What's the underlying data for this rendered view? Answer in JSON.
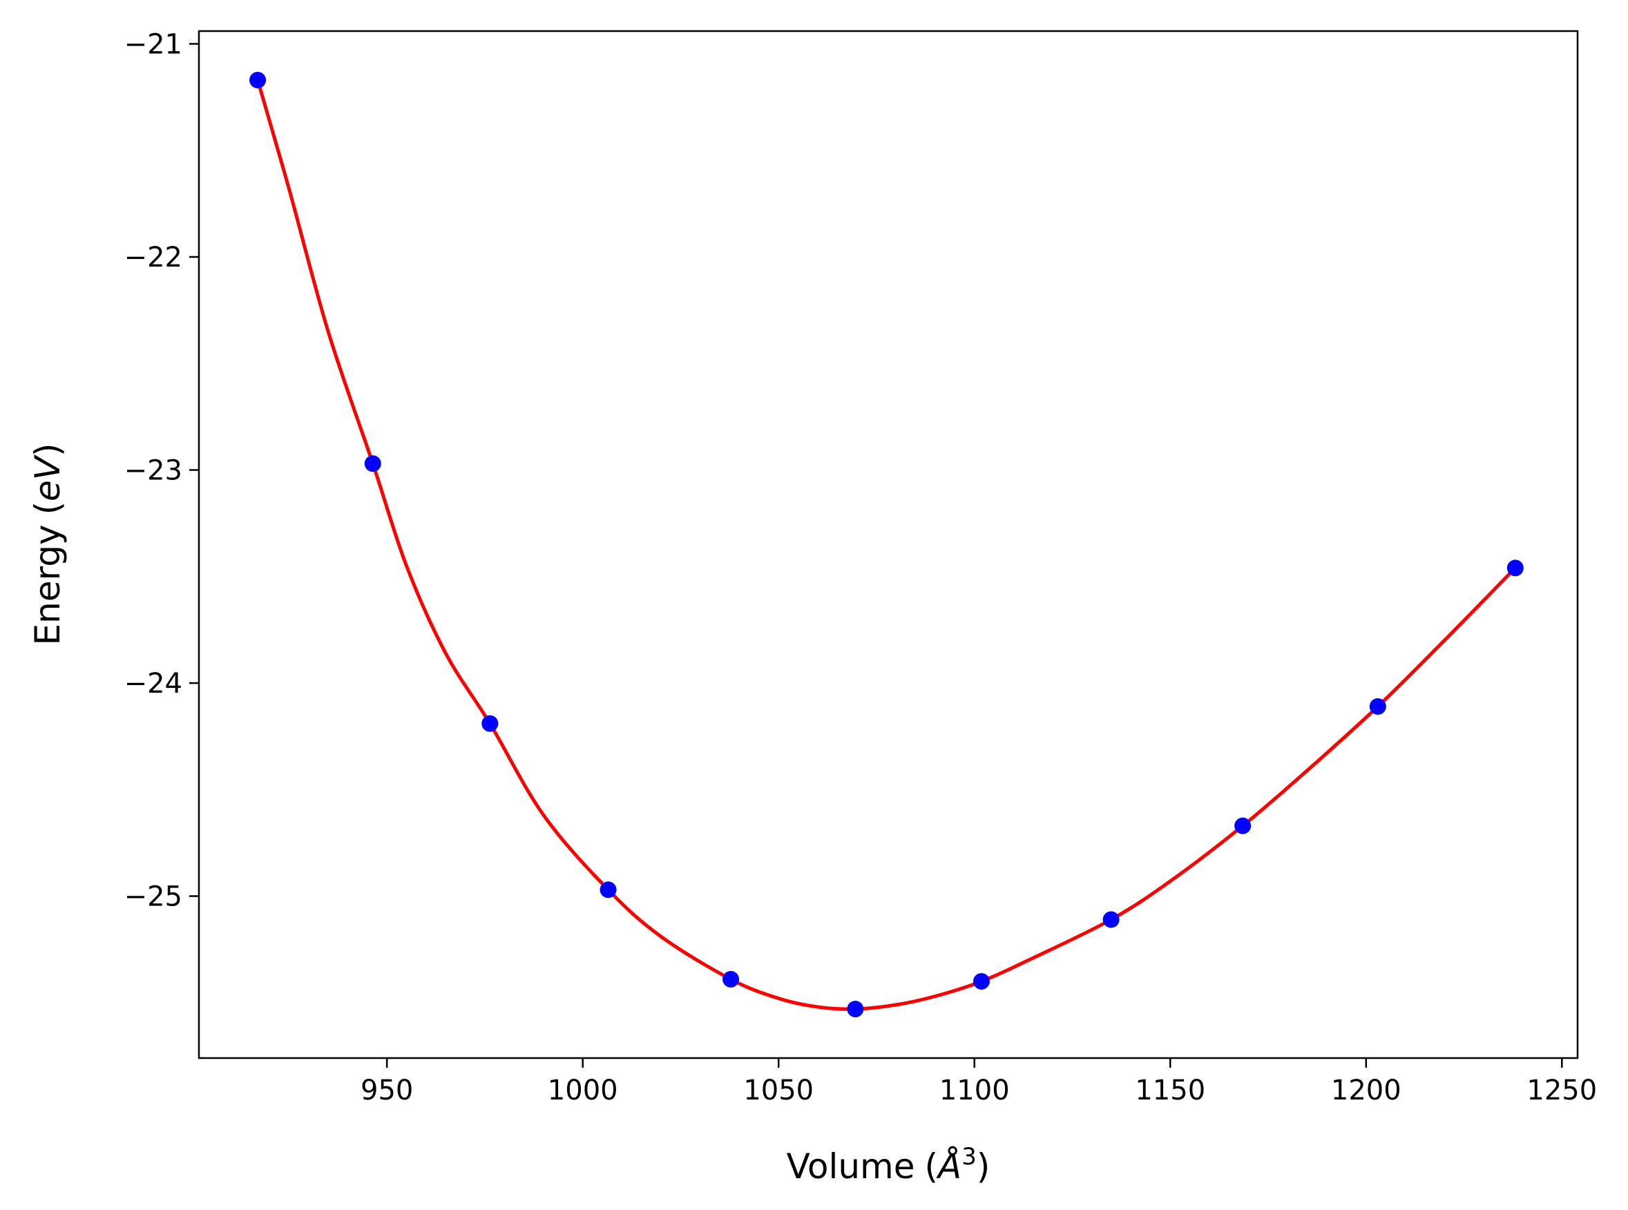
{
  "chart_data": {
    "type": "scatter",
    "title": "",
    "xlabel": "Volume",
    "xlabel_unit_prefix": "(",
    "xlabel_unit_symbol": "Å",
    "xlabel_unit_exponent": "3",
    "xlabel_unit_suffix": ")",
    "ylabel": "Energy",
    "ylabel_unit_prefix": "(",
    "ylabel_unit_symbol": "eV",
    "ylabel_unit_suffix": ")",
    "xlim": [
      902,
      1254
    ],
    "ylim": [
      -25.76,
      -20.94
    ],
    "x_ticks": [
      950,
      1000,
      1050,
      1100,
      1150,
      1200,
      1250
    ],
    "x_tick_labels": [
      "950",
      "1000",
      "1050",
      "1100",
      "1150",
      "1200",
      "1250"
    ],
    "y_ticks": [
      -21,
      -22,
      -23,
      -24,
      -25
    ],
    "y_tick_labels": [
      "−21",
      "−22",
      "−23",
      "−24",
      "−25"
    ],
    "grid": false,
    "series": [
      {
        "kind": "points",
        "color": "#0000ff",
        "x": [
          917,
          946.4,
          976.3,
          1006.5,
          1037.8,
          1069.6,
          1101.8,
          1134.9,
          1168.5,
          1203.0,
          1238.1
        ],
        "y": [
          -21.17,
          -22.97,
          -24.19,
          -24.97,
          -25.39,
          -25.53,
          -25.4,
          -25.11,
          -24.67,
          -24.11,
          -23.46
        ]
      },
      {
        "kind": "line",
        "color": "#ff0000",
        "x": [
          917,
          925,
          935,
          946.4,
          955,
          965,
          976.3,
          990,
          1006.5,
          1020,
          1037.8,
          1050,
          1060,
          1069.6,
          1080,
          1090,
          1101.8,
          1115,
          1134.9,
          1150,
          1168.5,
          1185,
          1203.0,
          1220,
          1238.1
        ],
        "y": [
          -21.17,
          -21.68,
          -22.35,
          -22.97,
          -23.45,
          -23.86,
          -24.19,
          -24.62,
          -24.97,
          -25.19,
          -25.39,
          -25.48,
          -25.52,
          -25.53,
          -25.51,
          -25.47,
          -25.4,
          -25.29,
          -25.11,
          -24.93,
          -24.67,
          -24.41,
          -24.11,
          -23.8,
          -23.46
        ]
      }
    ]
  }
}
